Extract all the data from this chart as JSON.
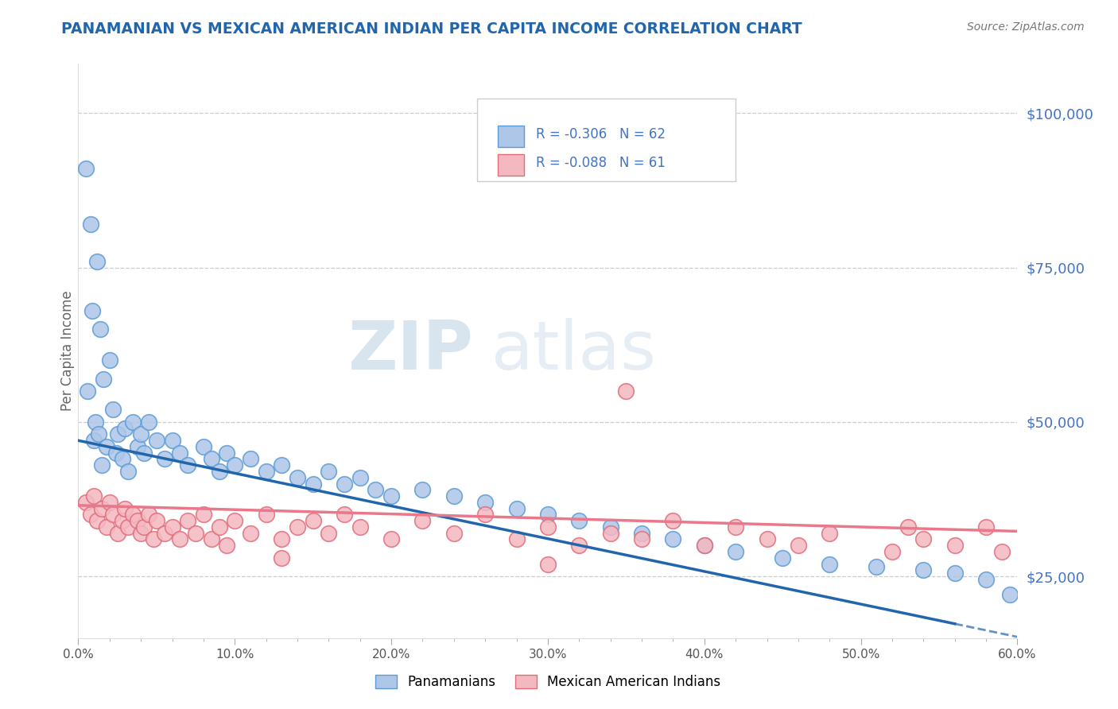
{
  "title": "PANAMANIAN VS MEXICAN AMERICAN INDIAN PER CAPITA INCOME CORRELATION CHART",
  "source": "Source: ZipAtlas.com",
  "ylabel": "Per Capita Income",
  "watermark_zip": "ZIP",
  "watermark_atlas": "atlas",
  "xlim": [
    0.0,
    0.6
  ],
  "ylim": [
    15000,
    108000
  ],
  "xticks": [
    0.0,
    0.1,
    0.2,
    0.3,
    0.4,
    0.5,
    0.6
  ],
  "xticklabels": [
    "0.0%",
    "10.0%",
    "20.0%",
    "30.0%",
    "40.0%",
    "50.0%",
    "60.0%"
  ],
  "ytick_positions": [
    25000,
    50000,
    75000,
    100000
  ],
  "ytick_labels": [
    "$25,000",
    "$50,000",
    "$75,000",
    "$100,000"
  ],
  "blue_R": -0.306,
  "blue_N": 62,
  "pink_R": -0.088,
  "pink_N": 61,
  "blue_color": "#aec6e8",
  "pink_color": "#f4b8c1",
  "blue_edge_color": "#5b9bd5",
  "pink_edge_color": "#e06c7a",
  "blue_line_color": "#2166ac",
  "pink_line_color": "#e8788a",
  "legend_label_blue": "Panamanians",
  "legend_label_pink": "Mexican American Indians",
  "title_color": "#2166ac",
  "right_tick_color": "#4472c4",
  "blue_line_intercept": 47000,
  "blue_line_slope": -53000,
  "pink_line_intercept": 36500,
  "pink_line_slope": -7000,
  "blue_scatter_x": [
    0.005,
    0.006,
    0.008,
    0.009,
    0.01,
    0.011,
    0.012,
    0.013,
    0.014,
    0.015,
    0.016,
    0.018,
    0.02,
    0.022,
    0.024,
    0.025,
    0.028,
    0.03,
    0.032,
    0.035,
    0.038,
    0.04,
    0.042,
    0.045,
    0.05,
    0.055,
    0.06,
    0.065,
    0.07,
    0.08,
    0.085,
    0.09,
    0.095,
    0.1,
    0.11,
    0.12,
    0.13,
    0.14,
    0.15,
    0.16,
    0.17,
    0.18,
    0.19,
    0.2,
    0.22,
    0.24,
    0.26,
    0.28,
    0.3,
    0.32,
    0.34,
    0.36,
    0.38,
    0.4,
    0.42,
    0.45,
    0.48,
    0.51,
    0.54,
    0.56,
    0.58,
    0.595
  ],
  "blue_scatter_y": [
    91000,
    55000,
    82000,
    68000,
    47000,
    50000,
    76000,
    48000,
    65000,
    43000,
    57000,
    46000,
    60000,
    52000,
    45000,
    48000,
    44000,
    49000,
    42000,
    50000,
    46000,
    48000,
    45000,
    50000,
    47000,
    44000,
    47000,
    45000,
    43000,
    46000,
    44000,
    42000,
    45000,
    43000,
    44000,
    42000,
    43000,
    41000,
    40000,
    42000,
    40000,
    41000,
    39000,
    38000,
    39000,
    38000,
    37000,
    36000,
    35000,
    34000,
    33000,
    32000,
    31000,
    30000,
    29000,
    28000,
    27000,
    26500,
    26000,
    25500,
    24500,
    22000
  ],
  "pink_scatter_x": [
    0.005,
    0.008,
    0.01,
    0.012,
    0.015,
    0.018,
    0.02,
    0.022,
    0.025,
    0.028,
    0.03,
    0.032,
    0.035,
    0.038,
    0.04,
    0.042,
    0.045,
    0.048,
    0.05,
    0.055,
    0.06,
    0.065,
    0.07,
    0.075,
    0.08,
    0.085,
    0.09,
    0.095,
    0.1,
    0.11,
    0.12,
    0.13,
    0.14,
    0.15,
    0.16,
    0.17,
    0.18,
    0.2,
    0.22,
    0.24,
    0.26,
    0.28,
    0.3,
    0.32,
    0.34,
    0.36,
    0.38,
    0.4,
    0.42,
    0.44,
    0.46,
    0.48,
    0.52,
    0.54,
    0.56,
    0.58,
    0.59,
    0.3,
    0.13,
    0.53,
    0.35
  ],
  "pink_scatter_y": [
    37000,
    35000,
    38000,
    34000,
    36000,
    33000,
    37000,
    35000,
    32000,
    34000,
    36000,
    33000,
    35000,
    34000,
    32000,
    33000,
    35000,
    31000,
    34000,
    32000,
    33000,
    31000,
    34000,
    32000,
    35000,
    31000,
    33000,
    30000,
    34000,
    32000,
    35000,
    31000,
    33000,
    34000,
    32000,
    35000,
    33000,
    31000,
    34000,
    32000,
    35000,
    31000,
    33000,
    30000,
    32000,
    31000,
    34000,
    30000,
    33000,
    31000,
    30000,
    32000,
    29000,
    31000,
    30000,
    33000,
    29000,
    27000,
    28000,
    33000,
    55000
  ]
}
